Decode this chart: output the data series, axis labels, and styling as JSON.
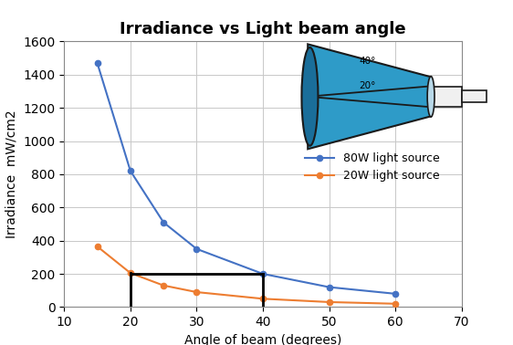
{
  "title": "Irradiance vs Light beam angle",
  "xlabel": "Angle of beam (degrees)",
  "ylabel": "Irradiance  mW/cm2",
  "xlim": [
    10,
    70
  ],
  "ylim": [
    0,
    1600
  ],
  "xticks": [
    10,
    20,
    30,
    40,
    50,
    60,
    70
  ],
  "yticks": [
    0,
    200,
    400,
    600,
    800,
    1000,
    1200,
    1400,
    1600
  ],
  "blue_x": [
    15,
    20,
    25,
    30,
    40,
    50,
    60
  ],
  "blue_y": [
    1470,
    820,
    510,
    350,
    200,
    120,
    80
  ],
  "orange_x": [
    15,
    20,
    25,
    30,
    40,
    50,
    60
  ],
  "orange_y": [
    365,
    205,
    130,
    90,
    50,
    30,
    20
  ],
  "blue_color": "#4472C4",
  "orange_color": "#ED7D31",
  "blue_label": "80W light source",
  "orange_label": "20W light source",
  "cone_color": "#2E9BC8",
  "cone_edge": "#1A1A1A",
  "lamp_color": "#F0F0F0",
  "background_color": "#ffffff",
  "grid_color": "#C8C8C8"
}
